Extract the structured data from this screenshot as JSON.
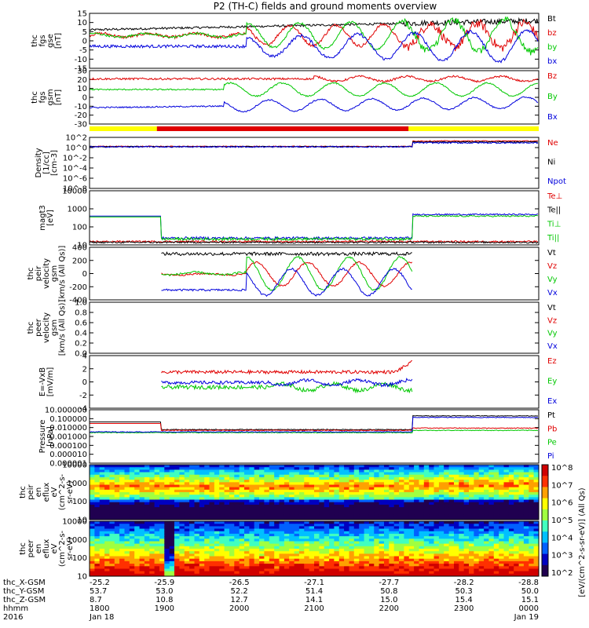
{
  "title": "P2 (TH-C) fields and ground moments overview",
  "colors": {
    "black": "#000000",
    "red": "#e00000",
    "green": "#00c800",
    "blue": "#0000dc",
    "yellow": "#ffff00"
  },
  "bar_label_note": "",
  "chart_data": {
    "type": "multi-panel-timeseries",
    "x_range": [
      0,
      6
    ],
    "panels": [
      {
        "id": "fgs-gse",
        "ylabel": [
          "thc",
          "fgs",
          "gse",
          "[nT]"
        ],
        "ylim": [
          -15,
          15
        ],
        "scale": "linear",
        "ticks": [
          15,
          10,
          5,
          0,
          -5,
          -10,
          -15
        ],
        "legend": [
          {
            "name": "Bt",
            "color": "#000000"
          },
          {
            "name": "bz",
            "color": "#e00000"
          },
          {
            "name": "by",
            "color": "#00c800"
          },
          {
            "name": "bx",
            "color": "#0000dc"
          }
        ]
      },
      {
        "id": "fgs-gsm",
        "ylabel": [
          "thc",
          "fgs",
          "gsm",
          "[nT]"
        ],
        "ylim": [
          -35,
          30
        ],
        "scale": "linear",
        "ticks": [
          30,
          20,
          10,
          0,
          -10,
          -20,
          -30
        ],
        "legend": [
          {
            "name": "Bz",
            "color": "#e00000"
          },
          {
            "name": "By",
            "color": "#00c800"
          },
          {
            "name": "Bx",
            "color": "#0000dc"
          }
        ]
      },
      {
        "id": "density",
        "ylabel": [
          "Density",
          "[1/cc]",
          "[cm-3]"
        ],
        "ylim": [
          -9,
          2.3
        ],
        "scale": "log",
        "ticks": [
          "10^2",
          "10^0",
          "10^-2",
          "10^-4",
          "10^-6",
          "10^-8"
        ],
        "legend": [
          {
            "name": "Ne",
            "color": "#e00000"
          },
          {
            "name": "Ni",
            "color": "#000000"
          },
          {
            "name": "Npot",
            "color": "#0000dc"
          }
        ]
      },
      {
        "id": "temp",
        "ylabel": [
          "magt3",
          "[eV]"
        ],
        "ylim": [
          0.9,
          4.1
        ],
        "scale": "log",
        "ticks": [
          "10000",
          "1000",
          "100",
          "10"
        ],
        "legend": [
          {
            "name": "Te⊥",
            "color": "#e00000"
          },
          {
            "name": "Te||",
            "color": "#000000"
          },
          {
            "name": "Ti⊥",
            "color": "#00c800"
          },
          {
            "name": "Ti||",
            "color": "#00c800"
          }
        ]
      },
      {
        "id": "peir-vel",
        "ylabel": [
          "thc",
          "peir",
          "velocity",
          "gsm",
          "[km/s (All Qs)]"
        ],
        "ylim": [
          -400,
          400
        ],
        "scale": "linear",
        "ticks": [
          400,
          200,
          0,
          -200,
          -400
        ],
        "legend": [
          {
            "name": "Vt",
            "color": "#000000"
          },
          {
            "name": "Vz",
            "color": "#e00000"
          },
          {
            "name": "Vy",
            "color": "#00c800"
          },
          {
            "name": "Vx",
            "color": "#0000dc"
          }
        ]
      },
      {
        "id": "peer-vel",
        "ylabel": [
          "thc",
          "peer",
          "velocity",
          "gsm",
          "[km/s (All Qs)]"
        ],
        "ylim": [
          0,
          1
        ],
        "scale": "linear",
        "ticks": [
          "1.0",
          "0.8",
          "0.6",
          "0.4",
          "0.2",
          "0.0"
        ],
        "legend": [
          {
            "name": "Vt",
            "color": "#000000"
          },
          {
            "name": "Vz",
            "color": "#e00000"
          },
          {
            "name": "Vy",
            "color": "#00c800"
          },
          {
            "name": "Vx",
            "color": "#0000dc"
          }
        ]
      },
      {
        "id": "efield",
        "ylabel": [
          "E=-VxB",
          "[mV/m]"
        ],
        "ylim": [
          -4,
          4
        ],
        "scale": "linear",
        "ticks": [
          4,
          2,
          0,
          -2,
          -4
        ],
        "legend": [
          {
            "name": "Ez",
            "color": "#e00000"
          },
          {
            "name": "Ey",
            "color": "#00c800"
          },
          {
            "name": "Ex",
            "color": "#0000dc"
          }
        ]
      },
      {
        "id": "pressure",
        "ylabel": [
          "Pressure",
          "[nPa]"
        ],
        "ylim": [
          -6,
          1
        ],
        "scale": "log",
        "ticks": [
          "10.000000",
          "0.100000",
          "0.010000",
          "0.001000",
          "0.000100",
          "0.000010",
          "0.000001"
        ],
        "legend": [
          {
            "name": "Pt",
            "color": "#000000"
          },
          {
            "name": "Pb",
            "color": "#e00000"
          },
          {
            "name": "Pe",
            "color": "#00c800"
          },
          {
            "name": "Pi",
            "color": "#0000dc"
          }
        ]
      },
      {
        "id": "peir-spec",
        "ylabel": [
          "thc",
          "peir",
          "en",
          "eflux",
          "eV",
          "(cm^2-s-",
          "sr-eV)"
        ],
        "scale": "log",
        "ticks": [
          "10000",
          "1000",
          "100",
          "10"
        ],
        "legend": []
      },
      {
        "id": "peer-spec",
        "ylabel": [
          "thc",
          "peer",
          "en",
          "eflux",
          "eV",
          "(cm^2-s-",
          "sr-eV)"
        ],
        "scale": "log",
        "ticks": [
          "10000",
          "1000",
          "100",
          "10"
        ],
        "legend": []
      }
    ],
    "colorbar": {
      "label": "[eV/(cm^2-s-sr-eV)] (All Qs)",
      "ticks": [
        "10^8",
        "10^7",
        "10^6",
        "10^5",
        "10^4",
        "10^3",
        "10^2"
      ]
    },
    "footer": {
      "rows": [
        {
          "label": "thc_X-GSM",
          "values": [
            "-25.2",
            "-25.9",
            "-26.5",
            "-27.1",
            "-27.7",
            "-28.2",
            "-28.8"
          ]
        },
        {
          "label": "thc_Y-GSM",
          "values": [
            "53.7",
            "53.0",
            "52.2",
            "51.4",
            "50.8",
            "50.3",
            "50.0"
          ]
        },
        {
          "label": "thc_Z-GSM",
          "values": [
            "8.7",
            "10.8",
            "12.7",
            "14.1",
            "15.0",
            "15.4",
            "15.1"
          ]
        },
        {
          "label": "hhmm",
          "values": [
            "1800",
            "1900",
            "2000",
            "2100",
            "2200",
            "2300",
            "0000"
          ]
        },
        {
          "label": "2016",
          "values": [
            "Jan 18",
            "",
            "",
            "",
            "",
            "",
            "Jan 19"
          ]
        }
      ]
    }
  }
}
